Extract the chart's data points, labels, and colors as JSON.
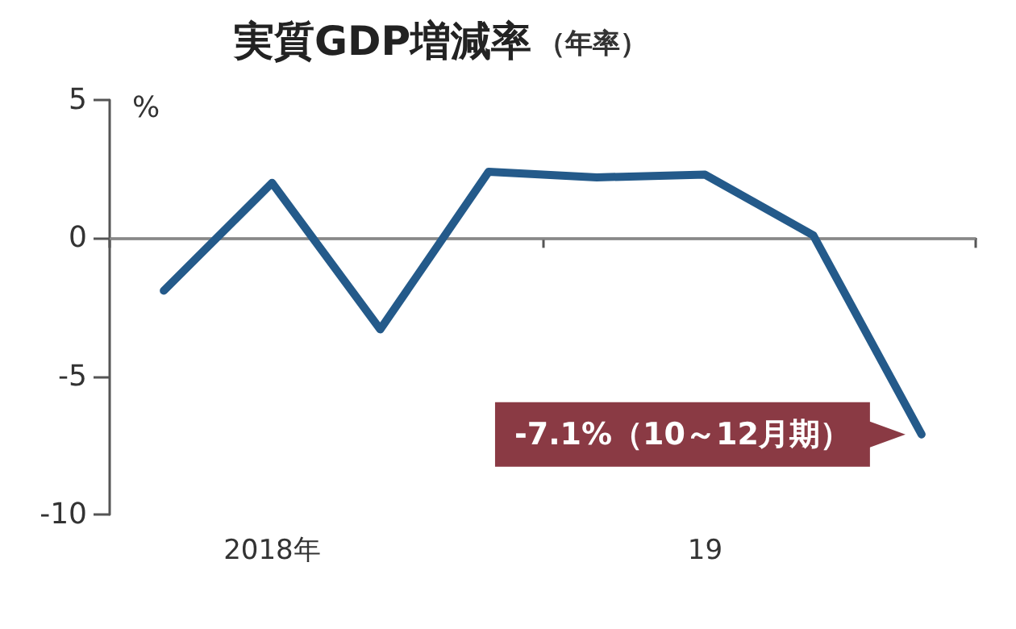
{
  "chart_data": {
    "type": "line",
    "title": "実質GDP増減率",
    "subtitle": "（年率）",
    "ylabel": "%",
    "categories": [
      null,
      "2018年",
      null,
      null,
      null,
      "19",
      null,
      null
    ],
    "series": [
      {
        "color": "#245a8a",
        "values": [
          -1.9,
          2.0,
          -3.3,
          2.4,
          2.2,
          2.3,
          0.1,
          -7.1
        ]
      }
    ],
    "ylim": [
      -10,
      5
    ],
    "yticks": [
      -10,
      -5,
      0,
      5
    ],
    "grid": false,
    "marker": "none",
    "line_style": "solid",
    "ref_lines": [
      {
        "axis": "y",
        "value": 0,
        "color": "#888888"
      }
    ],
    "annotations": [
      "-7.1%（10～12月期）"
    ]
  }
}
